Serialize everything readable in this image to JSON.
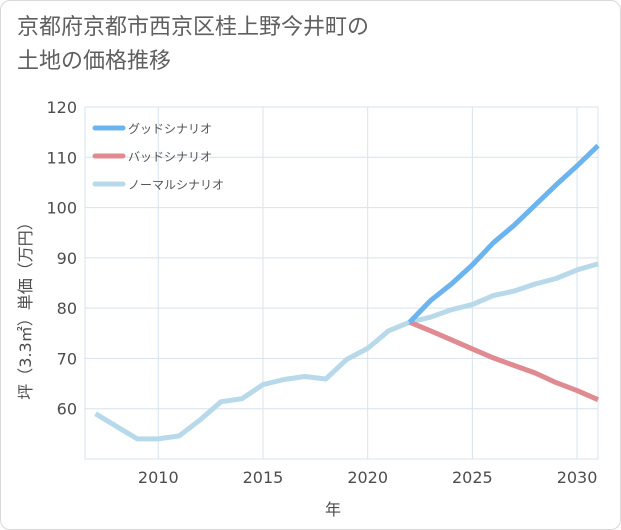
{
  "title_lines": [
    "京都府京都市西京区桂上野今井町の",
    "土地の価格推移"
  ],
  "chart_data": {
    "type": "line",
    "xlabel": "年",
    "ylabel": "坪（3.3㎡）単価（万円）",
    "xlim": [
      2006.5,
      2031
    ],
    "ylim": [
      50,
      120
    ],
    "xticks": [
      2010,
      2015,
      2020,
      2025,
      2030
    ],
    "yticks": [
      60,
      70,
      80,
      90,
      100,
      110,
      120
    ],
    "grid": true,
    "legend_position": "top-left",
    "series": [
      {
        "name": "グッドシナリオ",
        "color": "#6cb4ee",
        "x": [
          2022,
          2023,
          2024,
          2025,
          2026,
          2027,
          2028,
          2029,
          2030,
          2031
        ],
        "y": [
          77.2,
          81.5,
          84.8,
          88.6,
          93.0,
          96.5,
          100.5,
          104.5,
          108.3,
          112.3
        ]
      },
      {
        "name": "バッドシナリオ",
        "color": "#e08a92",
        "x": [
          2022,
          2023,
          2024,
          2025,
          2026,
          2027,
          2028,
          2029,
          2030,
          2031
        ],
        "y": [
          77.2,
          75.5,
          73.7,
          71.9,
          70.1,
          68.6,
          67.1,
          65.2,
          63.6,
          61.8
        ]
      },
      {
        "name": "ノーマルシナリオ",
        "color": "#b8d9ea",
        "x": [
          2007,
          2008,
          2009,
          2010,
          2011,
          2012,
          2013,
          2014,
          2015,
          2016,
          2017,
          2018,
          2019,
          2020,
          2021,
          2022,
          2023,
          2024,
          2025,
          2026,
          2027,
          2028,
          2029,
          2030,
          2031
        ],
        "y": [
          59.0,
          56.5,
          54.0,
          54.0,
          54.6,
          57.8,
          61.4,
          62.0,
          64.8,
          65.8,
          66.4,
          65.9,
          69.8,
          72.0,
          75.5,
          77.2,
          78.2,
          79.7,
          80.7,
          82.5,
          83.4,
          84.8,
          85.9,
          87.6,
          88.8
        ]
      }
    ]
  }
}
